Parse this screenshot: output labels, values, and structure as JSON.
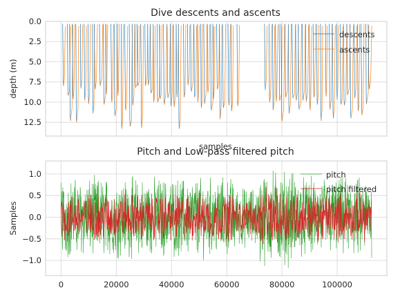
{
  "chart_data": [
    {
      "type": "line",
      "title": "Dive descents and ascents",
      "xlabel": "samples",
      "ylabel": "depth (m)",
      "y_inverted": true,
      "xlim": [
        -5600,
        118000
      ],
      "ylim": [
        0,
        14.2
      ],
      "yticks": [
        0.0,
        2.5,
        5.0,
        7.5,
        10.0,
        12.5
      ],
      "ytick_labels": [
        "0.0",
        "2.5",
        "5.0",
        "7.5",
        "10.0",
        "12.5"
      ],
      "xticks": [
        0,
        20000,
        40000,
        60000,
        80000,
        100000
      ],
      "xtick_labels_visible": false,
      "grid": true,
      "legend_position": "upper-right",
      "series": [
        {
          "name": "descents",
          "color": "#1f77b4"
        },
        {
          "name": "ascents",
          "color": "#ff7f0e"
        }
      ],
      "dives": [
        [
          900,
          8.0
        ],
        [
          2600,
          9.2
        ],
        [
          3400,
          12.3
        ],
        [
          4400,
          9.6
        ],
        [
          5600,
          12.5
        ],
        [
          7200,
          8.3
        ],
        [
          8600,
          9.8
        ],
        [
          10000,
          10.2
        ],
        [
          11600,
          11.4
        ],
        [
          12400,
          8.4
        ],
        [
          14200,
          8.0
        ],
        [
          15600,
          10.3
        ],
        [
          16400,
          9.0
        ],
        [
          18400,
          10.0
        ],
        [
          19500,
          11.7
        ],
        [
          20600,
          9.2
        ],
        [
          22000,
          13.3
        ],
        [
          23400,
          11.0
        ],
        [
          25000,
          13.0
        ],
        [
          26000,
          10.4
        ],
        [
          27000,
          8.2
        ],
        [
          27800,
          8.0
        ],
        [
          29200,
          13.2
        ],
        [
          30600,
          8.0
        ],
        [
          31600,
          7.9
        ],
        [
          32600,
          8.9
        ],
        [
          33600,
          10.0
        ],
        [
          35000,
          10.0
        ],
        [
          35900,
          9.6
        ],
        [
          37400,
          10.3
        ],
        [
          38700,
          9.5
        ],
        [
          39800,
          10.5
        ],
        [
          41000,
          10.6
        ],
        [
          42000,
          9.4
        ],
        [
          42800,
          13.3
        ],
        [
          44600,
          9.4
        ],
        [
          46000,
          7.9
        ],
        [
          47200,
          8.7
        ],
        [
          48400,
          9.4
        ],
        [
          49600,
          10.0
        ],
        [
          50800,
          10.7
        ],
        [
          52000,
          10.2
        ],
        [
          53200,
          8.8
        ],
        [
          54400,
          11.0
        ],
        [
          55200,
          9.6
        ],
        [
          56600,
          8.4
        ],
        [
          57600,
          12.1
        ],
        [
          58800,
          10.7
        ],
        [
          60800,
          10.4
        ],
        [
          61800,
          11.1
        ],
        [
          64000,
          10.5
        ],
        [
          74000,
          8.5
        ],
        [
          75600,
          10.0
        ],
        [
          76800,
          11.0
        ],
        [
          78000,
          9.9
        ],
        [
          79200,
          9.8
        ],
        [
          80000,
          12.4
        ],
        [
          81400,
          9.4
        ],
        [
          82600,
          11.4
        ],
        [
          84000,
          9.5
        ],
        [
          85200,
          9.8
        ],
        [
          86200,
          10.9
        ],
        [
          87600,
          9.8
        ],
        [
          88800,
          9.9
        ],
        [
          90200,
          11.0
        ],
        [
          91600,
          9.4
        ],
        [
          92800,
          10.3
        ],
        [
          94200,
          12.3
        ],
        [
          96000,
          9.3
        ],
        [
          97400,
          10.9
        ],
        [
          98600,
          12.0
        ],
        [
          100000,
          9.7
        ],
        [
          101400,
          10.3
        ],
        [
          102600,
          10.4
        ],
        [
          103800,
          9.1
        ],
        [
          105000,
          12.0
        ],
        [
          106400,
          9.5
        ],
        [
          107600,
          11.1
        ],
        [
          109000,
          11.6
        ],
        [
          110600,
          10.2
        ],
        [
          111600,
          8.4
        ]
      ]
    },
    {
      "type": "line",
      "title": "Pitch and Low-pass filtered pitch",
      "xlabel": "",
      "ylabel": "Samples",
      "xlim": [
        -5600,
        118000
      ],
      "ylim": [
        -1.35,
        1.3
      ],
      "yticks": [
        -1.0,
        -0.5,
        0.0,
        0.5,
        1.0
      ],
      "ytick_labels": [
        "−1.0",
        "−0.5",
        "0.0",
        "0.5",
        "1.0"
      ],
      "xticks": [
        0,
        20000,
        40000,
        60000,
        80000,
        100000
      ],
      "xtick_labels": [
        "0",
        "20000",
        "40000",
        "60000",
        "80000",
        "100000"
      ],
      "grid": true,
      "legend_position": "upper-right",
      "series": [
        {
          "name": "pitch",
          "color": "#2ca02c",
          "typical_amplitude": 0.75,
          "max": 1.15,
          "min": -1.3
        },
        {
          "name": "pitch filtered",
          "color": "#d62728",
          "typical_amplitude": 0.45,
          "max": 0.7,
          "min": -0.8
        }
      ]
    }
  ]
}
